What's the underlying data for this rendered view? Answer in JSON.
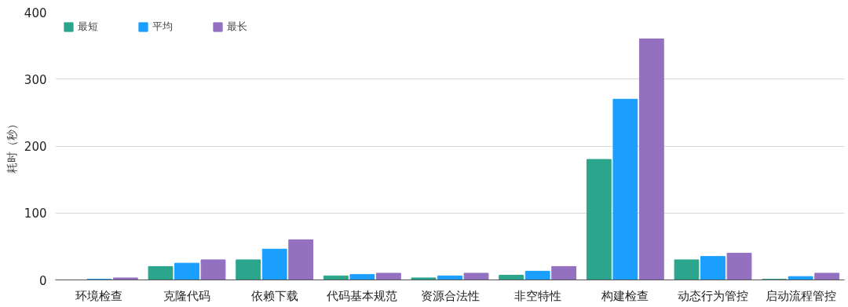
{
  "chart_data": {
    "type": "bar",
    "ylabel": "耗时（秒）",
    "categories": [
      "环境检查",
      "克隆代码",
      "依赖下载",
      "代码基本规范",
      "资源合法性",
      "非空特性",
      "构建检查",
      "动态行为管控",
      "启动流程管控"
    ],
    "series": [
      {
        "name": "最短",
        "color": "#2ca58d",
        "values": [
          0,
          20,
          30,
          6,
          3,
          7,
          180,
          30,
          1
        ]
      },
      {
        "name": "平均",
        "color": "#1a9fff",
        "values": [
          1,
          25,
          46,
          8,
          6,
          13,
          270,
          35,
          5
        ]
      },
      {
        "name": "最长",
        "color": "#9370c0",
        "values": [
          3,
          30,
          60,
          10,
          10,
          20,
          360,
          40,
          10
        ]
      }
    ],
    "ylim": [
      0,
      400
    ],
    "yticks": [
      0,
      100,
      200,
      300,
      400
    ],
    "grid": "y",
    "legend": "top left"
  }
}
